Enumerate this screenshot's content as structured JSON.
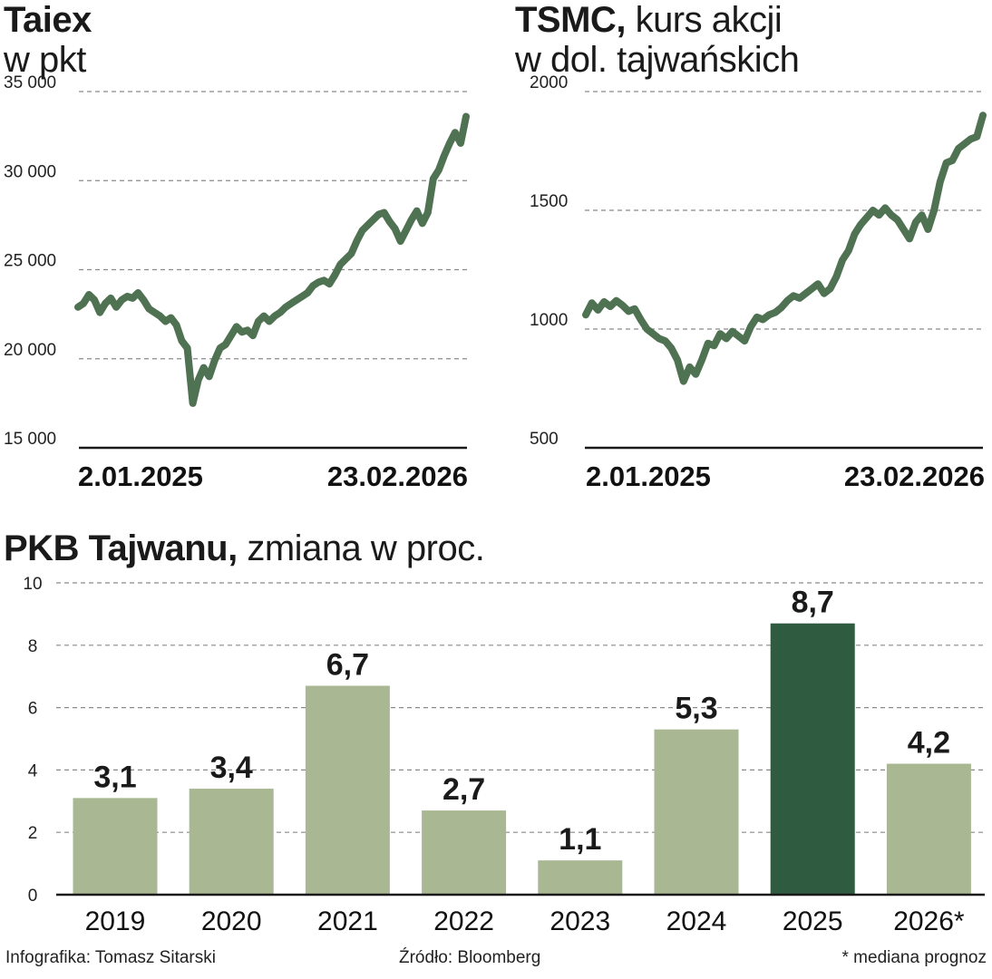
{
  "colors": {
    "line": "#4f7252",
    "bar": "#a9b892",
    "bar_highlight": "#2f5b40",
    "grid": "#8a8a8a",
    "axis": "#1a1a1a"
  },
  "chart_data": [
    {
      "type": "line",
      "title": "Taiex",
      "subtitle": "w pkt",
      "ylim": [
        15000,
        35000
      ],
      "yticks": [
        15000,
        20000,
        25000,
        30000,
        35000
      ],
      "ytick_labels": [
        "15 000",
        "20 000",
        "25 000",
        "30 000",
        "35 000"
      ],
      "x_labels": [
        "2.01.2025",
        "23.02.2026"
      ],
      "series": [
        {
          "name": "Taiex",
          "values": [
            22900,
            23100,
            23600,
            23300,
            22600,
            23100,
            23400,
            22900,
            23300,
            23500,
            23400,
            23700,
            23300,
            22800,
            22600,
            22400,
            22100,
            22300,
            21900,
            21000,
            20600,
            17500,
            18800,
            19500,
            19000,
            19900,
            20600,
            20800,
            21300,
            21800,
            21500,
            21600,
            21300,
            22100,
            22400,
            22100,
            22400,
            22600,
            22900,
            23100,
            23300,
            23500,
            23700,
            24100,
            24300,
            24400,
            24200,
            24700,
            25300,
            25600,
            25900,
            26600,
            27200,
            27500,
            27800,
            28100,
            28200,
            27700,
            27300,
            26600,
            27200,
            27800,
            28300,
            27600,
            28200,
            30100,
            30600,
            31400,
            32100,
            32700,
            32100,
            33600
          ]
        }
      ]
    },
    {
      "type": "line",
      "title": "TSMC,",
      "subtitle_line1": "kurs akcji",
      "subtitle_line2": "w dol. tajwańskich",
      "ylim": [
        500,
        2000
      ],
      "yticks": [
        500,
        1000,
        1500,
        2000
      ],
      "ytick_labels": [
        "500",
        "1000",
        "1500",
        "2000"
      ],
      "x_labels": [
        "2.01.2025",
        "23.02.2026"
      ],
      "series": [
        {
          "name": "TSMC",
          "values": [
            1060,
            1110,
            1080,
            1115,
            1095,
            1120,
            1100,
            1075,
            1085,
            1040,
            1000,
            980,
            960,
            950,
            920,
            870,
            780,
            840,
            810,
            870,
            940,
            930,
            980,
            960,
            990,
            970,
            950,
            1010,
            1050,
            1040,
            1060,
            1070,
            1090,
            1120,
            1140,
            1130,
            1150,
            1170,
            1190,
            1150,
            1170,
            1220,
            1290,
            1330,
            1400,
            1440,
            1470,
            1500,
            1480,
            1510,
            1480,
            1460,
            1420,
            1380,
            1450,
            1480,
            1420,
            1500,
            1620,
            1700,
            1710,
            1760,
            1780,
            1800,
            1810,
            1900
          ]
        }
      ]
    },
    {
      "type": "bar",
      "title": "PKB Tajwanu,",
      "subtitle": "zmiana w proc.",
      "ylim": [
        0,
        10
      ],
      "yticks": [
        0,
        2,
        4,
        6,
        8,
        10
      ],
      "ytick_labels": [
        "0",
        "2",
        "4",
        "6",
        "8",
        "10"
      ],
      "categories": [
        "2019",
        "2020",
        "2021",
        "2022",
        "2023",
        "2024",
        "2025",
        "2026*"
      ],
      "values": [
        3.1,
        3.4,
        6.7,
        2.7,
        1.1,
        5.3,
        8.7,
        4.2
      ],
      "value_labels": [
        "3,1",
        "3,4",
        "6,7",
        "2,7",
        "1,1",
        "5,3",
        "8,7",
        "4,2"
      ],
      "highlight_index": 6
    }
  ],
  "footer": {
    "author": "Infografika: Tomasz Sitarski",
    "source": "Źródło: Bloomberg",
    "note": "* mediana prognoz"
  }
}
